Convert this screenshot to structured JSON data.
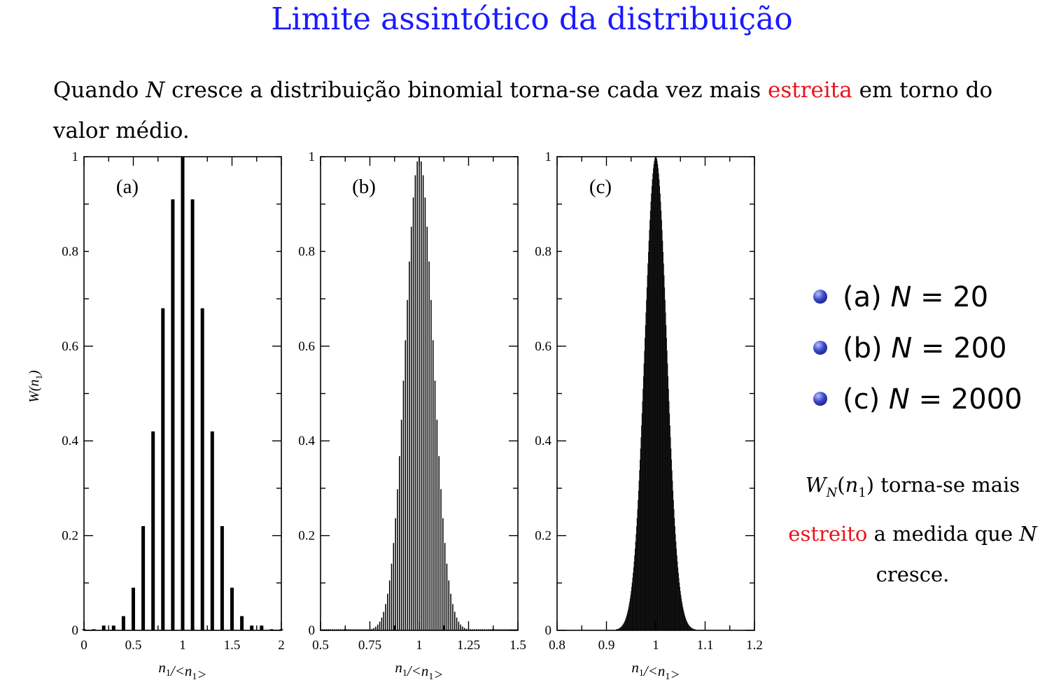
{
  "slide": {
    "title": "Limite assintótico da distribuição",
    "intro": {
      "part1": "Quando ",
      "N": "N",
      "part2": " cresce a distribuição binomial torna-se cada vez mais ",
      "highlight": "estreita",
      "part3": " em torno do valor médio."
    },
    "bullets": [
      {
        "label": "(a)",
        "var": "N",
        "eq": "= 20"
      },
      {
        "label": "(b)",
        "var": "N",
        "eq": "= 200"
      },
      {
        "label": "(c)",
        "var": "N",
        "eq": "= 2000"
      }
    ],
    "note": {
      "W": "W",
      "W_sub": "N",
      "arg_open": "(",
      "n": "n",
      "n_sub": "1",
      "arg_close": ")",
      "part1": " torna-se mais ",
      "highlight": "estreito",
      "part2": " a medida que ",
      "N": "N",
      "part3": " cresce."
    },
    "colors": {
      "title": "#1a1aff",
      "highlight": "#e8141b",
      "bars": "#000000"
    }
  },
  "chart_data": [
    {
      "type": "bar",
      "panel_label": "(a)",
      "N": 20,
      "xlabel": "n1/<n1>",
      "ylabel": "W(n1)",
      "xlim": [
        0,
        2
      ],
      "ylim": [
        0,
        1
      ],
      "xticks": [
        "0",
        "0.5",
        "1",
        "1.5",
        "2"
      ],
      "yticks": [
        "0",
        "0.2",
        "0.4",
        "0.6",
        "0.8",
        "1"
      ],
      "x": [
        0,
        0.1,
        0.2,
        0.3,
        0.4,
        0.5,
        0.6,
        0.7,
        0.8,
        0.9,
        1.0,
        1.1,
        1.2,
        1.3,
        1.4,
        1.5,
        1.6,
        1.7,
        1.8,
        1.9,
        2.0
      ],
      "values": [
        0.0,
        0.0,
        0.01,
        0.01,
        0.03,
        0.09,
        0.22,
        0.42,
        0.68,
        0.91,
        1.0,
        0.91,
        0.68,
        0.42,
        0.22,
        0.09,
        0.03,
        0.01,
        0.01,
        0.0,
        0.0
      ]
    },
    {
      "type": "bar",
      "panel_label": "(b)",
      "N": 200,
      "xlabel": "n1/<n1>",
      "ylabel": "",
      "xlim": [
        0.5,
        1.5
      ],
      "ylim": [
        0,
        1
      ],
      "xticks": [
        "0.5",
        "0.75",
        "1",
        "1.25",
        "1.5"
      ],
      "yticks": [
        "0",
        "0.2",
        "0.4",
        "0.6",
        "0.8",
        "1"
      ],
      "x_step": 0.01,
      "shape": "gaussian",
      "center": 1.0,
      "sigma": 0.0707,
      "peak": 1.0
    },
    {
      "type": "bar",
      "panel_label": "(c)",
      "N": 2000,
      "xlabel": "n1/<n1>",
      "ylabel": "",
      "xlim": [
        0.8,
        1.2
      ],
      "ylim": [
        0,
        1
      ],
      "xticks": [
        "0.8",
        "0.9",
        "1",
        "1.1",
        "1.2"
      ],
      "yticks": [
        "0",
        "0.2",
        "0.4",
        "0.6",
        "0.8",
        "1"
      ],
      "x_step": 0.001,
      "shape": "gaussian",
      "center": 1.0,
      "sigma": 0.0224,
      "peak": 1.0
    }
  ]
}
